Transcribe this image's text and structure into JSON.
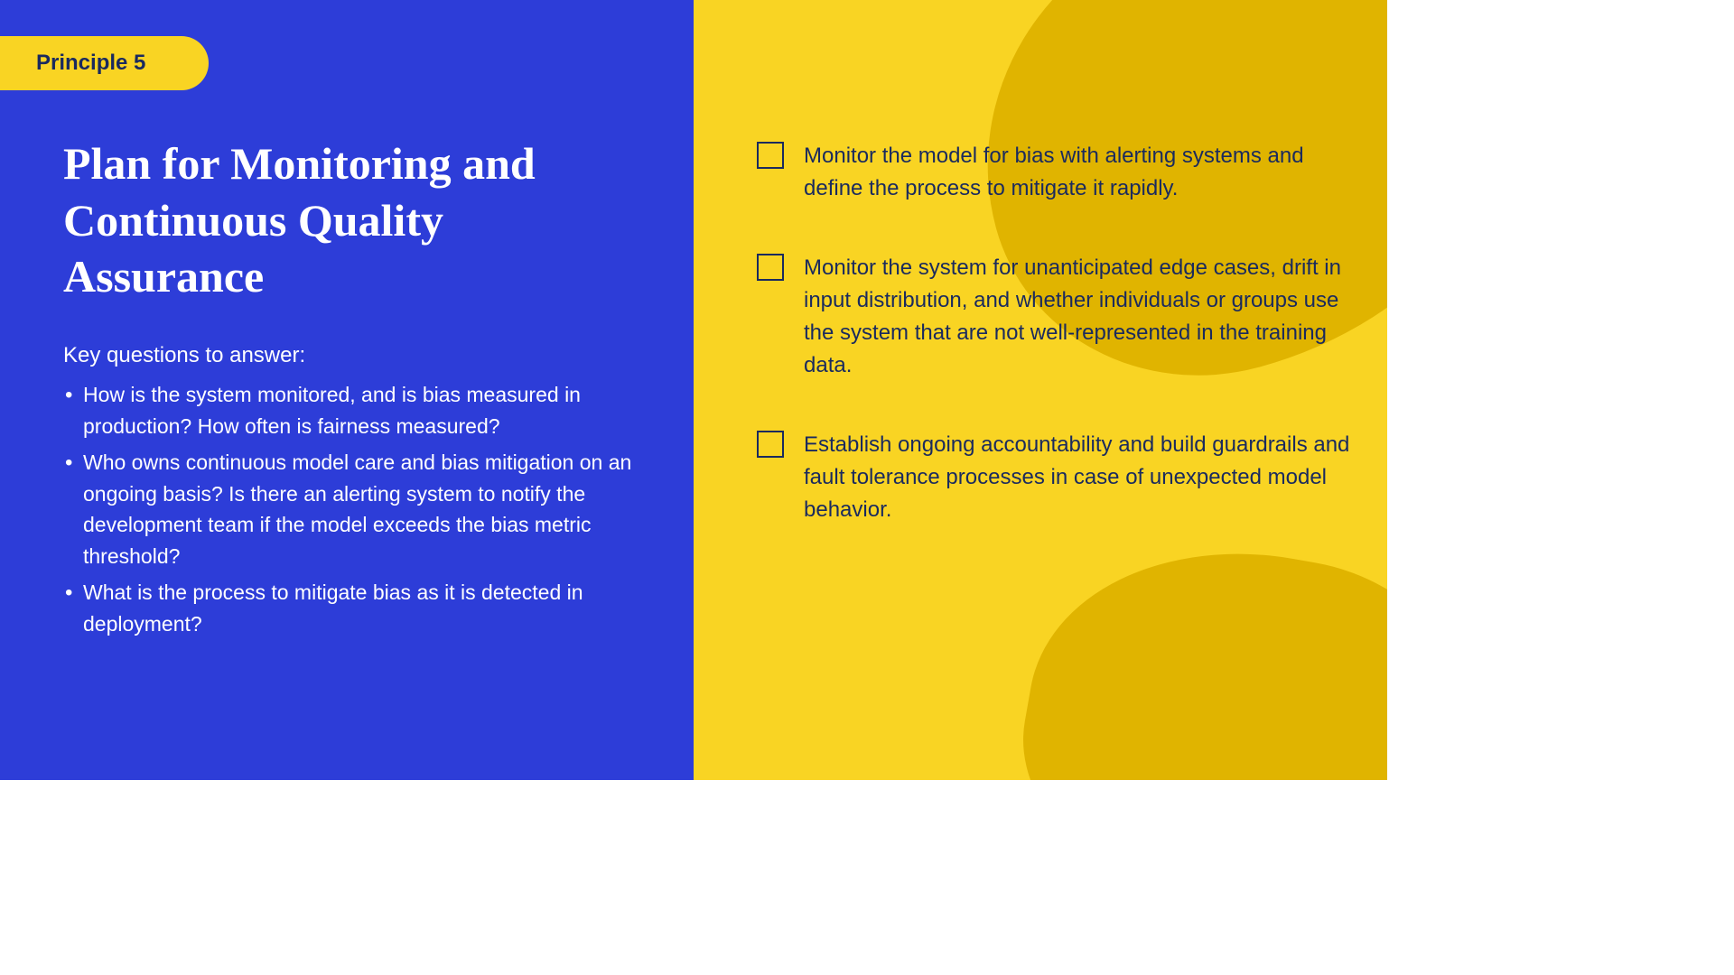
{
  "colors": {
    "left_bg": "#2d3dd8",
    "right_bg": "#f9d423",
    "wave_accent": "#e0b400",
    "badge_text": "#1a2a5e",
    "title_text": "#ffffff",
    "body_text_left": "#ffffff",
    "body_text_right": "#1a2a5e",
    "checkbox_border": "#1a2a5e"
  },
  "typography": {
    "badge_fontsize": 24,
    "title_fontsize": 50,
    "title_fontfamily": "Georgia, serif",
    "body_fontsize": 23,
    "checklist_fontsize": 24
  },
  "badge": {
    "label": "Principle 5"
  },
  "title": "Plan for Monitoring and Continuous Quality Assurance",
  "key_questions": {
    "heading": "Key questions to answer:",
    "items": [
      "How is the system monitored, and is bias measured in production? How often is fairness measured?",
      "Who owns continuous model care and bias mitigation on an ongoing basis? Is there an alerting system to notify the development team if the model exceeds the bias metric threshold?",
      "What is the process to mitigate bias as it is detected in deployment?"
    ]
  },
  "checklist": {
    "items": [
      "Monitor the model for bias with alerting systems and define the process to mitigate it rapidly.",
      "Monitor the system for unanticipated edge cases, drift in input distribution, and whether individuals or groups use the system that are not well-represented in the training data.",
      "Establish ongoing accountability and build guardrails and fault tolerance processes in case of unexpected model behavior."
    ]
  }
}
